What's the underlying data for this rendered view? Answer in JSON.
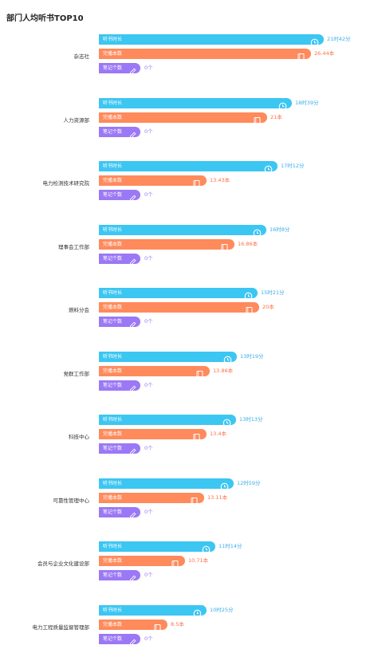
{
  "title": "部门人均听书TOP10",
  "chart_data": {
    "type": "bar",
    "orientation": "horizontal",
    "title": "部门人均听书TOP10",
    "bar_labels": {
      "listen": "听书时长",
      "books": "完播本数",
      "notes": "笔记个数"
    },
    "units": {
      "hour": "时",
      "minute": "分",
      "book": "本",
      "note": "个"
    },
    "colors": {
      "listen": "#3cc6f2",
      "books": "#ff8a5b",
      "notes": "#9b78f5",
      "listen_text": "#39aee8",
      "books_text": "#ff6e45"
    },
    "departments": [
      {
        "name": "杂志社",
        "listen_label": "21时42分",
        "listen_minutes": 1302,
        "books": 26.44,
        "books_label": "26.44本",
        "notes": 0,
        "notes_label": "0个"
      },
      {
        "name": "人力资源部",
        "listen_label": "18时39分",
        "listen_minutes": 1119,
        "books": 21,
        "books_label": "21本",
        "notes": 0,
        "notes_label": "0个"
      },
      {
        "name": "电力检测技术研究院",
        "listen_label": "17时12分",
        "listen_minutes": 1032,
        "books": 13.43,
        "books_label": "13.43本",
        "notes": 0,
        "notes_label": "0个"
      },
      {
        "name": "理事会工作部",
        "listen_label": "16时8分",
        "listen_minutes": 968,
        "books": 16.86,
        "books_label": "16.86本",
        "notes": 0,
        "notes_label": "0个"
      },
      {
        "name": "燃料分会",
        "listen_label": "15时21分",
        "listen_minutes": 921,
        "books": 20,
        "books_label": "20本",
        "notes": 0,
        "notes_label": "0个"
      },
      {
        "name": "党群工作部",
        "listen_label": "13时19分",
        "listen_minutes": 799,
        "books": 13.86,
        "books_label": "13.86本",
        "notes": 0,
        "notes_label": "0个"
      },
      {
        "name": "科技中心",
        "listen_label": "13时13分",
        "listen_minutes": 793,
        "books": 13.4,
        "books_label": "13.4本",
        "notes": 0,
        "notes_label": "0个"
      },
      {
        "name": "可靠性管理中心",
        "listen_label": "12时59分",
        "listen_minutes": 779,
        "books": 13.11,
        "books_label": "13.11本",
        "notes": 0,
        "notes_label": "0个"
      },
      {
        "name": "会员与企业文化建设部",
        "listen_label": "11时14分",
        "listen_minutes": 674,
        "books": 10.71,
        "books_label": "10.71本",
        "notes": 0,
        "notes_label": "0个"
      },
      {
        "name": "电力工程质量监督管理部",
        "listen_label": "10时25分",
        "listen_minutes": 625,
        "books": 8.5,
        "books_label": "8.5本",
        "notes": 0,
        "notes_label": "0个"
      }
    ]
  }
}
